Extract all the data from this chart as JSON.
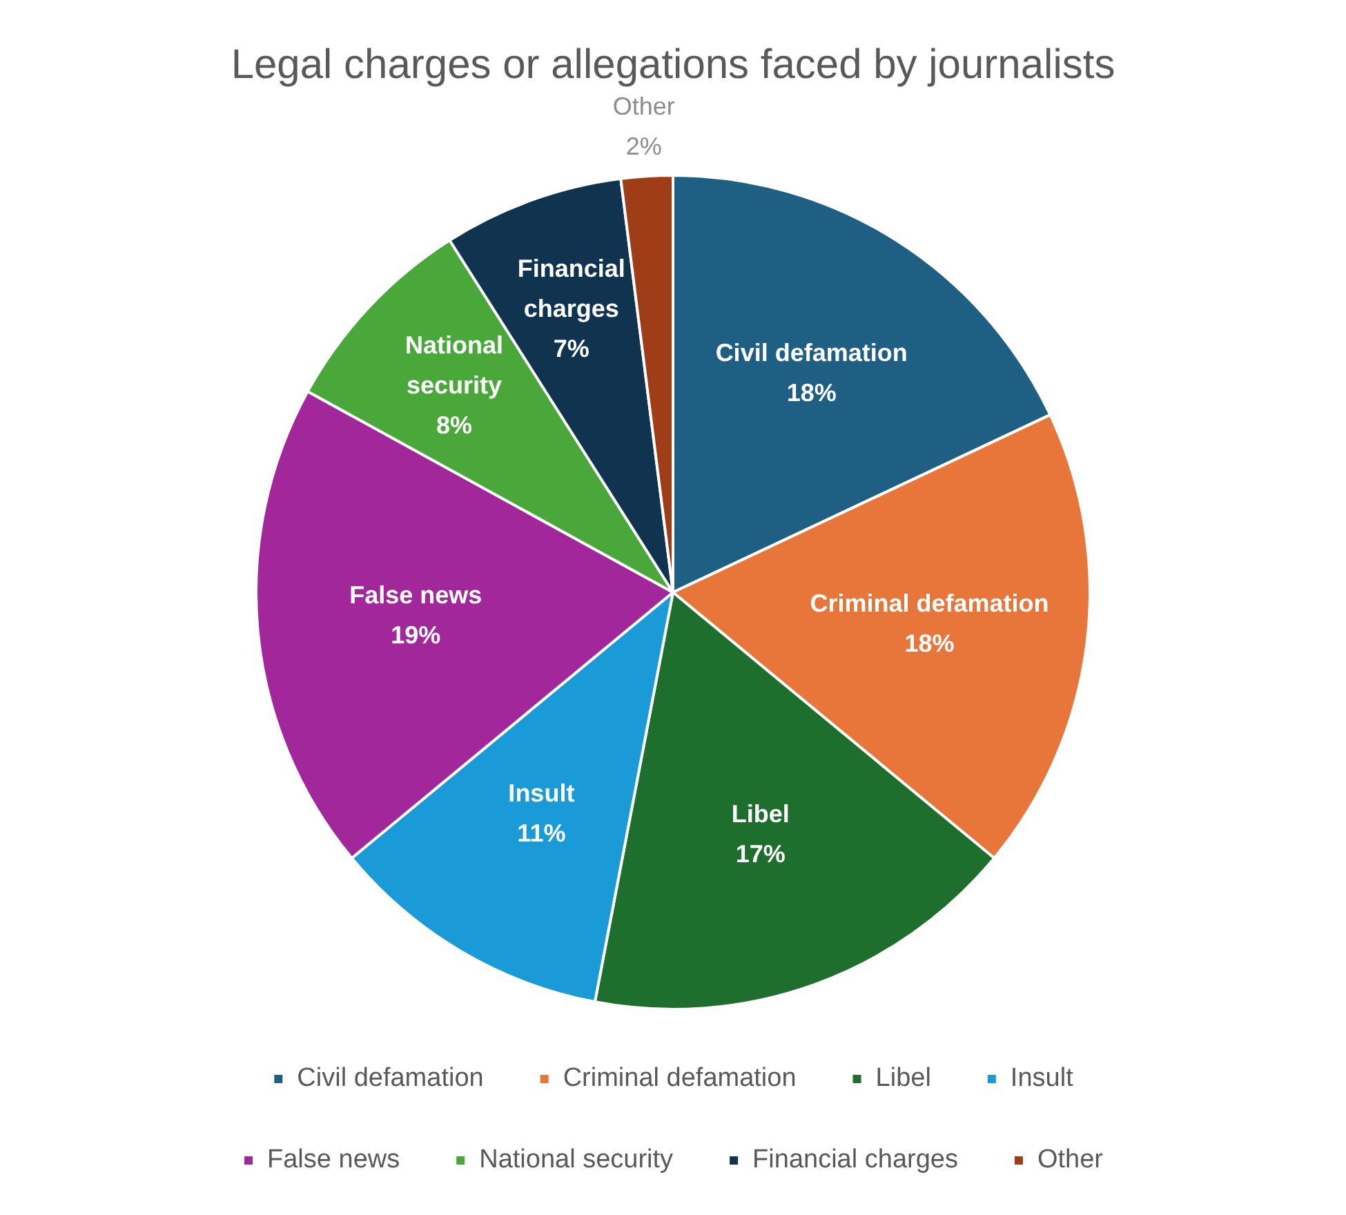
{
  "chart_data": {
    "type": "pie",
    "title": "Legal charges or allegations faced by journalists",
    "categories": [
      "Civil defamation",
      "Criminal defamation",
      "Libel",
      "Insult",
      "False news",
      "National security",
      "Financial charges",
      "Other"
    ],
    "values": [
      18,
      18,
      17,
      11,
      19,
      8,
      7,
      2
    ],
    "colors": [
      "#1f5f84",
      "#e8763a",
      "#1e6e2e",
      "#1a9ad6",
      "#a1279a",
      "#4aa83a",
      "#10334f",
      "#9e3d17"
    ],
    "value_labels": [
      "18%",
      "18%",
      "17%",
      "11%",
      "19%",
      "8%",
      "7%",
      "2%"
    ],
    "legend": "bottom"
  }
}
